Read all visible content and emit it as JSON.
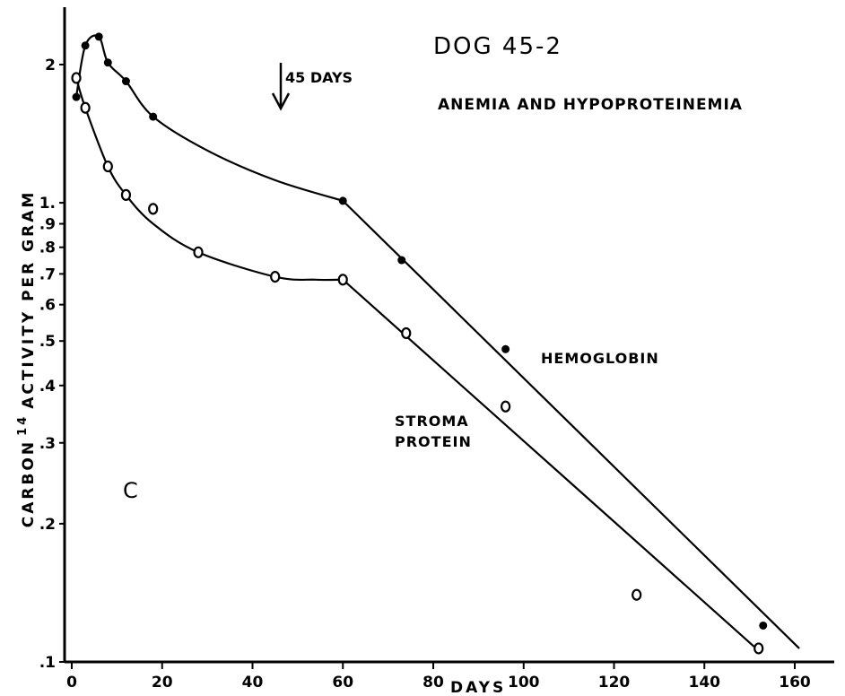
{
  "chart_data": {
    "type": "line",
    "title": "DOG 45-2",
    "subtitle": "ANEMIA AND HYPOPROTEINEMIA",
    "xlabel": "DAYS",
    "ylabel_main": "CARBON",
    "ylabel_sup": "14",
    "ylabel_rest": "ACTIVITY PER GRAM",
    "panel_label": "C",
    "annotation": "45 DAYS",
    "annotation_x": 45,
    "xlim": [
      0,
      165
    ],
    "ylim": [
      0.1,
      2.4
    ],
    "yscale": "log",
    "x_ticks": [
      {
        "value": 0,
        "label": "0"
      },
      {
        "value": 20,
        "label": "20"
      },
      {
        "value": 40,
        "label": "40"
      },
      {
        "value": 60,
        "label": "60"
      },
      {
        "value": 80,
        "label": "80"
      },
      {
        "value": 100,
        "label": "100"
      },
      {
        "value": 120,
        "label": "120"
      },
      {
        "value": 140,
        "label": "140"
      },
      {
        "value": 160,
        "label": "160"
      }
    ],
    "y_ticks": [
      {
        "value": 0.1,
        "label": ".1"
      },
      {
        "value": 0.2,
        "label": ".2"
      },
      {
        "value": 0.3,
        "label": ".3"
      },
      {
        "value": 0.4,
        "label": ".4"
      },
      {
        "value": 0.5,
        "label": ".5"
      },
      {
        "value": 0.6,
        "label": ".6"
      },
      {
        "value": 0.7,
        "label": ".7"
      },
      {
        "value": 0.8,
        "label": ".8"
      },
      {
        "value": 0.9,
        "label": ".9"
      },
      {
        "value": 1.0,
        "label": "1."
      },
      {
        "value": 2.0,
        "label": "2"
      }
    ],
    "series": [
      {
        "name": "HEMOGLOBIN",
        "marker": "filled-circle",
        "points": [
          {
            "x": 1,
            "y": 1.7
          },
          {
            "x": 3,
            "y": 2.2
          },
          {
            "x": 6,
            "y": 2.3
          },
          {
            "x": 8,
            "y": 2.02
          },
          {
            "x": 12,
            "y": 1.84
          },
          {
            "x": 18,
            "y": 1.54
          },
          {
            "x": 60,
            "y": 1.01
          },
          {
            "x": 73,
            "y": 0.75
          },
          {
            "x": 96,
            "y": 0.48
          },
          {
            "x": 153,
            "y": 0.12
          }
        ],
        "curve": [
          {
            "x": 1,
            "y": 1.7
          },
          {
            "x": 3,
            "y": 2.2
          },
          {
            "x": 6,
            "y": 2.3
          },
          {
            "x": 8,
            "y": 2.02
          },
          {
            "x": 12,
            "y": 1.84
          },
          {
            "x": 18,
            "y": 1.54
          },
          {
            "x": 30,
            "y": 1.3
          },
          {
            "x": 45,
            "y": 1.12
          },
          {
            "x": 60,
            "y": 1.01
          }
        ],
        "fit_line": [
          {
            "x": 60,
            "y": 1.01
          },
          {
            "x": 161,
            "y": 0.107
          }
        ]
      },
      {
        "name": "STROMA PROTEIN",
        "name_line1": "STROMA",
        "name_line2": "PROTEIN",
        "marker": "open-circle",
        "points": [
          {
            "x": 1,
            "y": 1.87
          },
          {
            "x": 3,
            "y": 1.61
          },
          {
            "x": 8,
            "y": 1.2
          },
          {
            "x": 12,
            "y": 1.04
          },
          {
            "x": 18,
            "y": 0.97
          },
          {
            "x": 28,
            "y": 0.78
          },
          {
            "x": 45,
            "y": 0.69
          },
          {
            "x": 60,
            "y": 0.68
          },
          {
            "x": 74,
            "y": 0.52
          },
          {
            "x": 96,
            "y": 0.36
          },
          {
            "x": 125,
            "y": 0.14
          },
          {
            "x": 152,
            "y": 0.107
          }
        ],
        "curve": [
          {
            "x": 1,
            "y": 1.87
          },
          {
            "x": 3,
            "y": 1.61
          },
          {
            "x": 8,
            "y": 1.2
          },
          {
            "x": 12,
            "y": 1.04
          },
          {
            "x": 18,
            "y": 0.9
          },
          {
            "x": 28,
            "y": 0.78
          },
          {
            "x": 45,
            "y": 0.69
          },
          {
            "x": 54,
            "y": 0.68
          },
          {
            "x": 60,
            "y": 0.68
          }
        ],
        "fit_line": [
          {
            "x": 60,
            "y": 0.68
          },
          {
            "x": 151,
            "y": 0.108
          }
        ]
      }
    ]
  }
}
